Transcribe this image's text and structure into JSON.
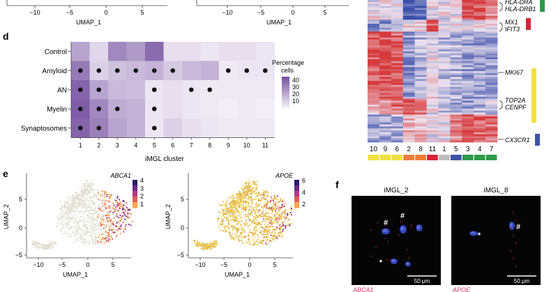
{
  "panel_letters": {
    "d": "d",
    "e": "e",
    "f": "f"
  },
  "top_umaps": [
    {
      "xlabel": "UMAP_1",
      "ticks": [
        "−10",
        "−5",
        "0",
        "5"
      ]
    },
    {
      "xlabel": "UMAP_1",
      "ticks": [
        "−10",
        "−5",
        "0",
        "5"
      ]
    }
  ],
  "chart_data": [
    {
      "type": "heatmap",
      "panel": "d",
      "rows": [
        "Control",
        "Amyloid",
        "AN",
        "Myelin",
        "Synaptosomes"
      ],
      "columns": [
        "1",
        "2",
        "3",
        "4",
        "5",
        "6",
        "7",
        "8",
        "9",
        "10",
        "11"
      ],
      "xlabel": "iMGL cluster",
      "legend_title": "Percentage cells",
      "legend_ticks": [
        "40",
        "30",
        "20",
        "10"
      ],
      "color_range": [
        0,
        45
      ],
      "values": [
        [
          22,
          8,
          30,
          25,
          38,
          6,
          6,
          4,
          6,
          6,
          4
        ],
        [
          34,
          10,
          14,
          16,
          18,
          12,
          16,
          18,
          3,
          4,
          4
        ],
        [
          40,
          22,
          16,
          15,
          4,
          6,
          4,
          3,
          3,
          3,
          3
        ],
        [
          42,
          30,
          20,
          18,
          4,
          6,
          4,
          3,
          2,
          3,
          2
        ],
        [
          40,
          32,
          22,
          18,
          4,
          10,
          6,
          4,
          3,
          3,
          3
        ]
      ],
      "significant": [
        [],
        [
          "1",
          "2",
          "3",
          "4",
          "5",
          "6",
          "9",
          "10",
          "11"
        ],
        [
          "1",
          "2",
          "5",
          "7",
          "8"
        ],
        [
          "1",
          "2",
          "3",
          "5"
        ],
        [
          "1",
          "2",
          "5"
        ]
      ]
    },
    {
      "type": "heatmap",
      "panel": "top-right",
      "cluster_order": [
        "10",
        "9",
        "6",
        "2",
        "8",
        "11",
        "1",
        "5",
        "3",
        "4",
        "7"
      ],
      "group_colors": [
        "#f0e040",
        "#f0e040",
        "#f0e040",
        "#ee7d3a",
        "#ee7d3a",
        "#d4253a",
        "#bdbdbd",
        "#3b54a4",
        "#2e9a48",
        "#2e9a48",
        "#2e9a48"
      ],
      "gene_labels": [
        {
          "name": "HLA-DRA",
          "y": "top"
        },
        {
          "name": "HLA-DRB1",
          "y": "top"
        },
        {
          "name": "MX1",
          "y": "ifn"
        },
        {
          "name": "IFIT3",
          "y": "ifn"
        },
        {
          "name": "MKI67",
          "y": "prolif"
        },
        {
          "name": "TOP2A",
          "y": "prolif"
        },
        {
          "name": "CENPF",
          "y": "prolif"
        },
        {
          "name": "CX3CR1",
          "y": "homeo"
        }
      ]
    },
    {
      "type": "scatter",
      "panel": "e",
      "plots": [
        {
          "gene": "ABCA1",
          "xlabel": "UMAP_1",
          "ylabel": "UMAP_2",
          "xticks": [
            "−10",
            "−5",
            "0",
            "5"
          ],
          "yticks": [
            "5",
            "0",
            "−5"
          ],
          "colorbar_ticks": [
            "4",
            "3",
            "2",
            "1"
          ],
          "palette": "magma-yellow"
        },
        {
          "gene": "APOE",
          "xlabel": "UMAP_1",
          "ylabel": "UMAP_2",
          "xticks": [
            "−10",
            "−5",
            "0",
            "5"
          ],
          "yticks": [
            "5",
            "0",
            "−5"
          ],
          "colorbar_ticks": [
            "6",
            "4",
            "2"
          ],
          "palette": "magma-yellow"
        }
      ]
    }
  ],
  "micro": {
    "panels": [
      {
        "title": "iMGL_2",
        "scale": "50 μm",
        "stain": "ABCA1"
      },
      {
        "title": "iMGL_8",
        "scale": "50 μm",
        "stain": "APOE"
      }
    ],
    "hash": "#",
    "star": "*"
  }
}
